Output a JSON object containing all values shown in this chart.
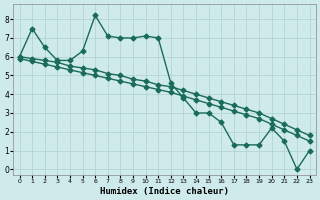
{
  "xlabel": "Humidex (Indice chaleur)",
  "background_color": "#ceeaea",
  "grid_color": "#b0d0d0",
  "line_color": "#1a6b5a",
  "xlim": [
    -0.5,
    23.5
  ],
  "ylim": [
    -0.3,
    8.8
  ],
  "xticks": [
    0,
    1,
    2,
    3,
    4,
    5,
    6,
    7,
    8,
    9,
    10,
    11,
    12,
    13,
    14,
    15,
    16,
    17,
    18,
    19,
    20,
    21,
    22,
    23
  ],
  "yticks": [
    0,
    1,
    2,
    3,
    4,
    5,
    6,
    7,
    8
  ],
  "series1": [
    6.0,
    7.5,
    6.5,
    5.8,
    5.8,
    6.3,
    8.2,
    7.1,
    7.0,
    7.0,
    7.1,
    7.0,
    4.6,
    3.8,
    3.0,
    3.0,
    2.5,
    1.3,
    1.3,
    1.3,
    2.2,
    1.5,
    0.0,
    1.0
  ],
  "series2": [
    6.0,
    5.9,
    5.8,
    5.7,
    5.5,
    5.4,
    5.3,
    5.1,
    5.0,
    4.8,
    4.7,
    4.5,
    4.4,
    4.2,
    4.0,
    3.8,
    3.6,
    3.4,
    3.2,
    3.0,
    2.7,
    2.4,
    2.1,
    1.8
  ],
  "series3": [
    5.9,
    5.75,
    5.6,
    5.45,
    5.3,
    5.15,
    5.0,
    4.85,
    4.7,
    4.55,
    4.4,
    4.25,
    4.1,
    3.9,
    3.7,
    3.5,
    3.3,
    3.1,
    2.9,
    2.7,
    2.4,
    2.1,
    1.8,
    1.5
  ],
  "marker": "D",
  "markersize": 2.5,
  "linewidth": 1.0
}
